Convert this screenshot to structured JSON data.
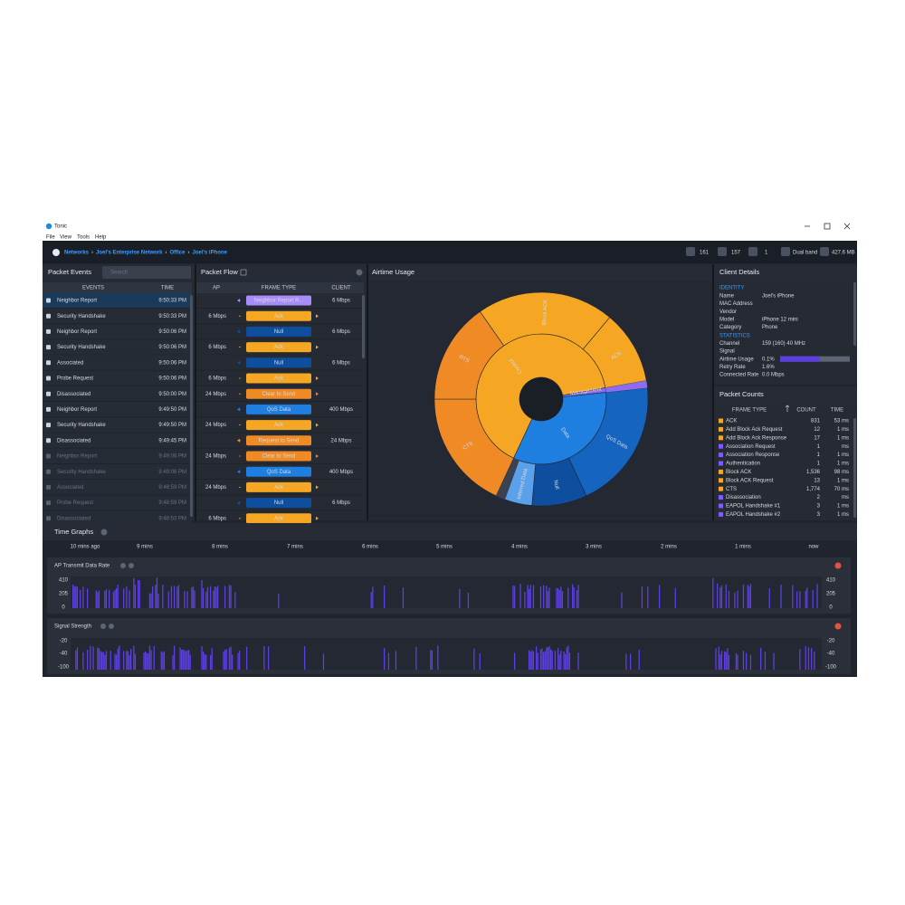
{
  "window": {
    "title": "Tonic",
    "menu": [
      "File",
      "View",
      "Tools",
      "Help"
    ]
  },
  "breadcrumb": {
    "items": [
      "Networks",
      "Joel's Enterprise Network",
      "Office",
      "Joel's iPhone"
    ],
    "separator": "›"
  },
  "status": [
    "161",
    "157",
    "1",
    "Dual band",
    "427.6 MB"
  ],
  "packet_events": {
    "title": "Packet Events",
    "search_placeholder": "Search",
    "columns": [
      "EVENTS",
      "TIME"
    ],
    "rows": [
      [
        "Neighbor Report",
        "9:50:33 PM"
      ],
      [
        "Security Handshake",
        "9:50:33 PM"
      ],
      [
        "Neighbor Report",
        "9:50:06 PM"
      ],
      [
        "Security Handshake",
        "9:50:06 PM"
      ],
      [
        "Associated",
        "9:50:06 PM"
      ],
      [
        "Probe Request",
        "9:50:06 PM"
      ],
      [
        "Disassociated",
        "9:50:00 PM"
      ],
      [
        "Neighbor Report",
        "9:49:50 PM"
      ],
      [
        "Security Handshake",
        "9:49:50 PM"
      ],
      [
        "Disassociated",
        "9:49:45 PM"
      ],
      [
        "Neighbor Report",
        "9:49:06 PM"
      ],
      [
        "Security Handshake",
        "9:49:06 PM"
      ],
      [
        "Associated",
        "9:48:59 PM"
      ],
      [
        "Probe Request",
        "9:48:59 PM"
      ],
      [
        "Disassociated",
        "9:48:53 PM"
      ]
    ]
  },
  "packet_flow": {
    "title": "Packet Flow",
    "columns": [
      "AP",
      "FRAME TYPE",
      "CLIENT"
    ],
    "rows": [
      {
        "frame": "Neighbor Report R...",
        "client": "6 Mbps",
        "color": "#a78bfa"
      },
      {
        "ap": "6 Mbps",
        "frame": "Ack",
        "color": "#f5a623"
      },
      {
        "frame": "Null",
        "client": "6 Mbps",
        "color": "#0d4f9e"
      },
      {
        "ap": "6 Mbps",
        "frame": "Ack",
        "color": "#f5a623"
      },
      {
        "frame": "Null",
        "client": "6 Mbps",
        "color": "#0d4f9e"
      },
      {
        "ap": "6 Mbps",
        "frame": "Ack",
        "color": "#f5a623"
      },
      {
        "ap": "24 Mbps",
        "frame": "Clear to Send",
        "color": "#f08a24"
      },
      {
        "frame": "QoS Data",
        "client": "400 Mbps",
        "color": "#1e7fe0"
      },
      {
        "ap": "24 Mbps",
        "frame": "Ack",
        "color": "#f5a623"
      },
      {
        "frame": "Request to Send",
        "client": "24 Mbps",
        "color": "#f08a24"
      },
      {
        "ap": "24 Mbps",
        "frame": "Clear to Send",
        "color": "#f08a24"
      },
      {
        "frame": "QoS Data",
        "client": "400 Mbps",
        "color": "#1e7fe0"
      },
      {
        "ap": "24 Mbps",
        "frame": "Ack",
        "color": "#f5a623"
      },
      {
        "frame": "Null",
        "client": "6 Mbps",
        "color": "#0d4f9e"
      },
      {
        "ap": "6 Mbps",
        "frame": "Ack",
        "color": "#f5a623"
      }
    ]
  },
  "airtime": {
    "title": "Airtime Usage",
    "inner": [
      "Control",
      "Data",
      "Management"
    ],
    "outer": [
      "Block ACK",
      "ACK",
      "QoS Data",
      "Null",
      "Inferred Data",
      "CTS",
      "RTS"
    ]
  },
  "client_details": {
    "title": "Client Details",
    "identity_heading": "IDENTITY",
    "identity": [
      {
        "label": "Name",
        "value": "Joel's iPhone"
      },
      {
        "label": "MAC Address"
      },
      {
        "label": "Vendor"
      },
      {
        "label": "Model",
        "value": "iPhone 12 mini"
      },
      {
        "label": "Category",
        "value": "Phone"
      }
    ],
    "statistics_heading": "STATISTICS",
    "statistics": [
      {
        "label": "Channel",
        "value": "159 (160)  40 MHz"
      },
      {
        "label": "Signal"
      },
      {
        "label": "Airtime Usage",
        "value": "0.1%"
      },
      {
        "label": "Retry Rate",
        "value": "1.6%"
      },
      {
        "label": "Connected Rate",
        "value": "0.0 Mbps"
      }
    ]
  },
  "packet_counts": {
    "title": "Packet Counts",
    "columns": [
      "FRAME TYPE",
      "COUNT",
      "TIME"
    ],
    "rows": [
      {
        "name": "ACK",
        "count": "831",
        "time": "53 ms",
        "color": "#f5a623"
      },
      {
        "name": "Add Block Ack Request",
        "count": "12",
        "time": "1 ms",
        "color": "#f5a623"
      },
      {
        "name": "Add Block Ack Response",
        "count": "17",
        "time": "1 ms",
        "color": "#f5a623"
      },
      {
        "name": "Association Request",
        "count": "1",
        "time": "ms",
        "color": "#7c5cff"
      },
      {
        "name": "Association Response",
        "count": "1",
        "time": "1 ms",
        "color": "#7c5cff"
      },
      {
        "name": "Authentication",
        "count": "1",
        "time": "1 ms",
        "color": "#7c5cff"
      },
      {
        "name": "Block ACK",
        "count": "1,536",
        "time": "98 ms",
        "color": "#f5a623"
      },
      {
        "name": "Block ACK Request",
        "count": "13",
        "time": "1 ms",
        "color": "#f5a623"
      },
      {
        "name": "CTS",
        "count": "1,774",
        "time": "70 ms",
        "color": "#f5a623"
      },
      {
        "name": "Disassociation",
        "count": "2",
        "time": "ms",
        "color": "#7c5cff"
      },
      {
        "name": "EAPOL Handshake #1",
        "count": "3",
        "time": "1 ms",
        "color": "#7c5cff"
      },
      {
        "name": "EAPOL Handshake #2",
        "count": "3",
        "time": "1 ms",
        "color": "#7c5cff"
      }
    ]
  },
  "time_graphs": {
    "title": "Time Graphs",
    "axis": [
      "10 mins ago",
      "9 mins",
      "8 mins",
      "7 mins",
      "6 mins",
      "5 mins",
      "4 mins",
      "3 mins",
      "2 mins",
      "1 mins",
      "now"
    ],
    "graphs": [
      {
        "title": "AP Transmit Data Rate",
        "ticks": [
          410,
          205,
          0
        ],
        "color": "#5b3fe0"
      },
      {
        "title": "Signal Strength",
        "ticks": [
          -20,
          -40,
          -100
        ],
        "color": "#5b3fe0"
      }
    ]
  }
}
